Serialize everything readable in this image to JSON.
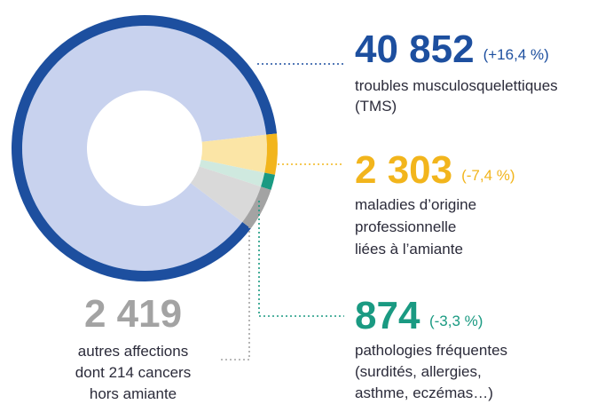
{
  "chart_data": {
    "type": "donut",
    "values": [
      40852,
      2303,
      874,
      2419
    ],
    "value_labels": [
      "40 852",
      "2 303",
      "874",
      "2 419"
    ],
    "changes": [
      "(+16,4 %)",
      "(-7,4 %)",
      "(-3,3 %)",
      null
    ],
    "labels": [
      [
        "troubles musculosquelettiques",
        "(TMS)"
      ],
      [
        "maladies d’origine",
        "professionnelle",
        "liées à l’amiante"
      ],
      [
        "pathologies fréquentes",
        "(surdités, allergies,",
        "asthme, eczémas…)"
      ],
      [
        "autres affections",
        "dont 214 cancers",
        "hors amiante"
      ]
    ],
    "colors": [
      "#1d4f9f",
      "#f2b51c",
      "#1a9a82",
      "#a3a3a3"
    ],
    "light_colors": [
      "#c8d2ee",
      "#fbe5a6",
      "#cfe9df",
      "#d9d9d9"
    ]
  }
}
